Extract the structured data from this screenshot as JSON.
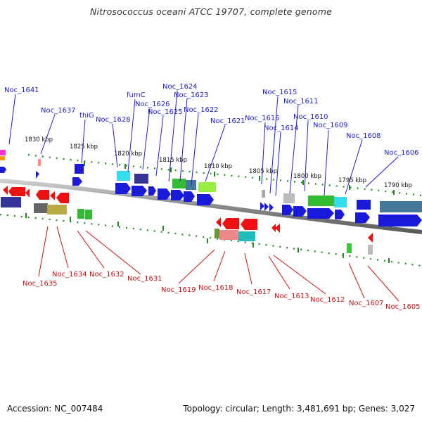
{
  "title": "Nitrosococcus oceani ATCC 19707, complete genome",
  "footer": {
    "accession": "Accession: NC_007484",
    "summary": "Topology: circular; Length: 3,481,691 bp; Genes: 3,027"
  },
  "colors": {
    "forward_label": "#1d1dcc",
    "reverse_label": "#cc1111",
    "backbone": "#8a8a8a",
    "ruler": "#1e8a1e"
  },
  "ruler_ticks": [
    {
      "label": "1830 kbp"
    },
    {
      "label": "1825 kbp"
    },
    {
      "label": "1820 kbp"
    },
    {
      "label": "1815 kbp"
    },
    {
      "label": "1810 kbp"
    },
    {
      "label": "1805 kbp"
    },
    {
      "label": "1800 kbp"
    },
    {
      "label": "1795 kbp"
    },
    {
      "label": "1790 kbp"
    }
  ],
  "forward_gene_labels": [
    "Noc_1641",
    "Noc_1637",
    "thiG",
    "Noc_1628",
    "fumC",
    "Noc_1626",
    "Noc_1625",
    "Noc_1624",
    "Noc_1623",
    "Noc_1622",
    "Noc_1621",
    "Noc_1616",
    "Noc_1615",
    "Noc_1614",
    "Noc_1611",
    "Noc_1610",
    "Noc_1609",
    "Noc_1608",
    "Noc_1606"
  ],
  "reverse_gene_labels": [
    "Noc_1635",
    "Noc_1634",
    "Noc_1632",
    "Noc_1631",
    "Noc_1619",
    "Noc_1618",
    "Noc_1617",
    "Noc_1613",
    "Noc_1612",
    "Noc_1607",
    "Noc_1605"
  ]
}
